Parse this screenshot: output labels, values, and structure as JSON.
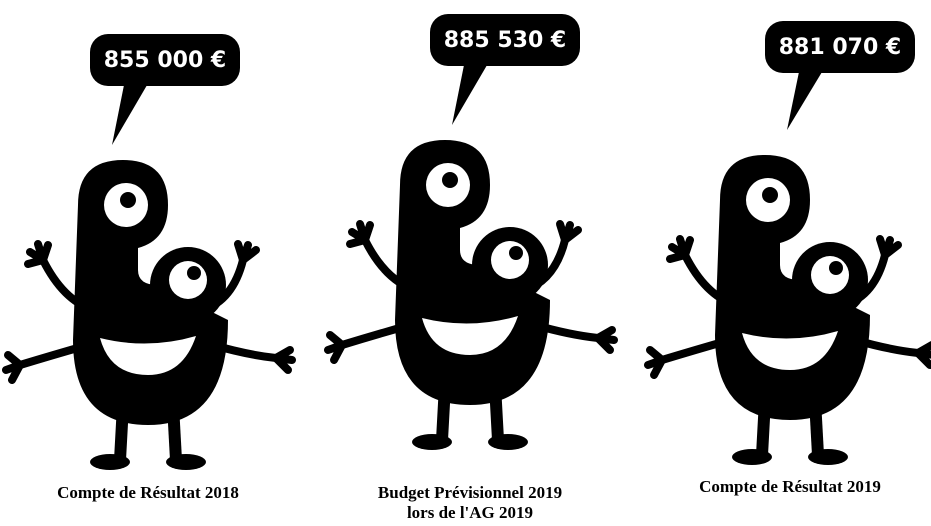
{
  "figures": [
    {
      "amount": "855 000 €",
      "caption": [
        "Compte de Résultat 2018"
      ]
    },
    {
      "amount": "885 530 €",
      "caption": [
        "Budget Prévisionnel 2019",
        "lors de l'AG 2019"
      ]
    },
    {
      "amount": "881 070 €",
      "caption": [
        "Compte de Résultat 2019"
      ]
    }
  ]
}
